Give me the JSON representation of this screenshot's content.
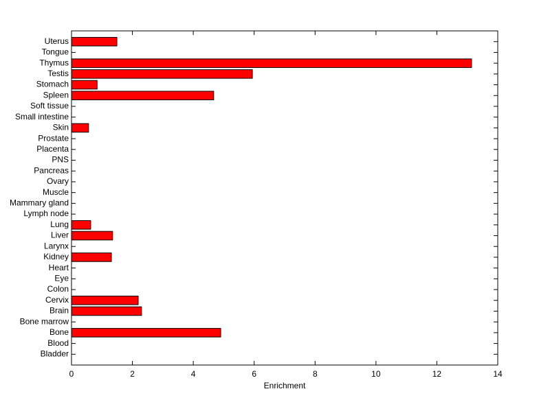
{
  "chart_data": {
    "type": "barh",
    "xlabel": "Enrichment",
    "categories": [
      "Bladder",
      "Blood",
      "Bone",
      "Bone marrow",
      "Brain",
      "Cervix",
      "Colon",
      "Eye",
      "Heart",
      "Kidney",
      "Larynx",
      "Liver",
      "Lung",
      "Lymph node",
      "Mammary gland",
      "Muscle",
      "Ovary",
      "Pancreas",
      "PNS",
      "Placenta",
      "Prostate",
      "Skin",
      "Small intestine",
      "Soft tissue",
      "Spleen",
      "Stomach",
      "Testis",
      "Thymus",
      "Tongue",
      "Uterus"
    ],
    "values": [
      0,
      0,
      4.9,
      0,
      2.3,
      2.19,
      0,
      0,
      0,
      1.31,
      0,
      1.35,
      0.63,
      0,
      0,
      0,
      0,
      0,
      0,
      0,
      0,
      0.56,
      0,
      0,
      4.67,
      0.84,
      5.94,
      13.14,
      0,
      1.49
    ],
    "color": "#ff0000",
    "xlim": [
      0,
      14
    ],
    "xticks": [
      0,
      2,
      4,
      6,
      8,
      10,
      12,
      14
    ]
  }
}
